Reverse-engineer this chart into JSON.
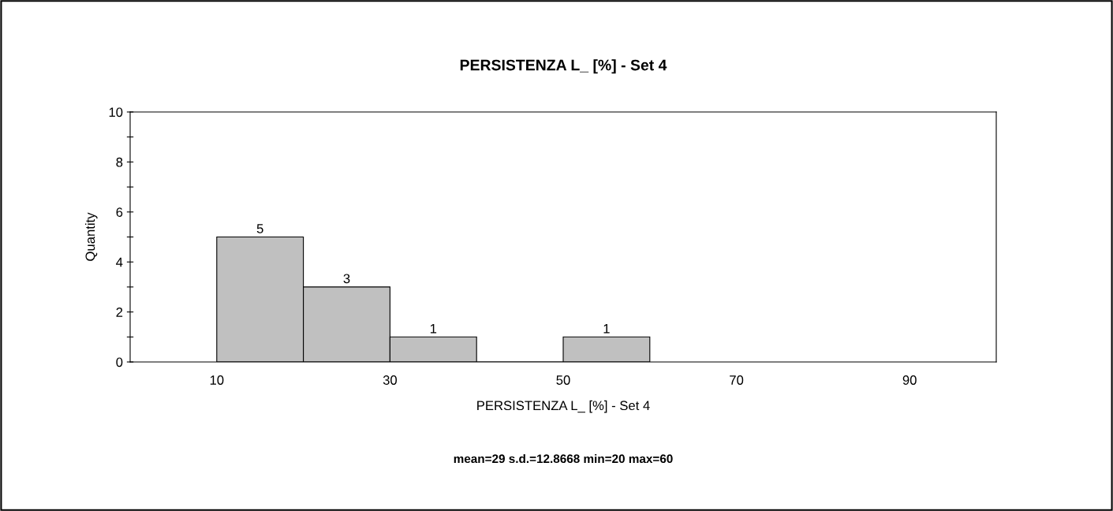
{
  "chart_data": {
    "type": "histogram",
    "title": "PERSISTENZA L_ [%] - Set 4",
    "xlabel": "PERSISTENZA L_ [%] - Set 4",
    "ylabel": "Quantity",
    "bins": [
      10,
      20,
      30,
      40,
      50,
      60
    ],
    "values": [
      5,
      3,
      1,
      0,
      1
    ],
    "value_labels": [
      "5",
      "3",
      "1",
      null,
      "1"
    ],
    "color": "#c0c0c0",
    "xlim": [
      0,
      100
    ],
    "xticks": [
      10,
      30,
      50,
      70,
      90
    ],
    "ylim": [
      0,
      10
    ],
    "yticks": [
      0,
      {
        "value": 1,
        "label": null
      },
      2,
      {
        "value": 3,
        "label": null
      },
      4,
      {
        "value": 5,
        "label": null
      },
      6,
      {
        "value": 7,
        "label": null
      },
      8,
      {
        "value": 9,
        "label": null
      },
      10
    ],
    "grid": false,
    "legend": false,
    "annotations": [
      "mean=29 s.d.=12.8668 min=20 max=60"
    ]
  }
}
